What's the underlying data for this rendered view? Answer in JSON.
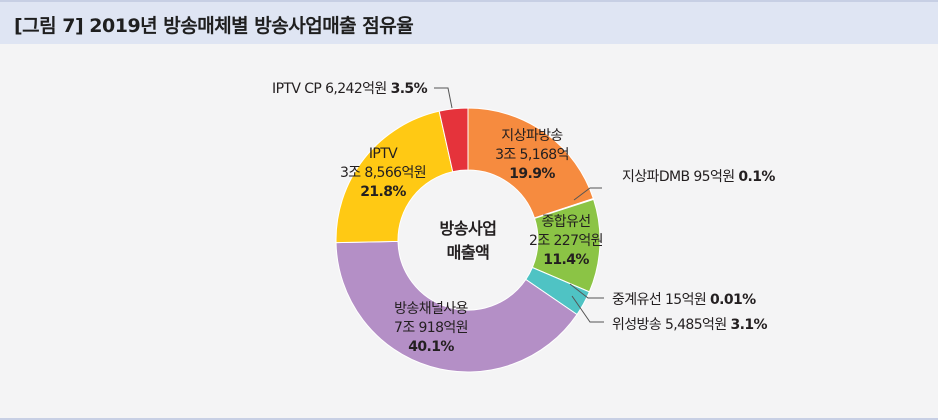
{
  "figure": {
    "title": "[그림 7]  2019년 방송매체별 방송사업매출 점유율"
  },
  "chart_data": {
    "type": "pie",
    "donut": true,
    "center_label": [
      "방송사업",
      "매출액"
    ],
    "start_angle_deg": 0,
    "direction": "clockwise",
    "slices": [
      {
        "name": "지상파방송",
        "amount": "3조 5,168억",
        "percent_label": "19.9%",
        "value": 19.9,
        "color": "#f68b3f"
      },
      {
        "name": "지상파DMB",
        "amount": "95억원",
        "percent_label": "0.1%",
        "value": 0.1,
        "color": "#f9c08a"
      },
      {
        "name": "종합유선",
        "amount": "2조 227억원",
        "percent_label": "11.4%",
        "value": 11.4,
        "color": "#8bc445"
      },
      {
        "name": "중계유선",
        "amount": "15억원",
        "percent_label": "0.01%",
        "value": 0.01,
        "color": "#58c2c3"
      },
      {
        "name": "위성방송",
        "amount": "5,485억원",
        "percent_label": "3.1%",
        "value": 3.1,
        "color": "#4fc3c4"
      },
      {
        "name": "방송채널사용",
        "amount": "7조 918억원",
        "percent_label": "40.1%",
        "value": 40.1,
        "color": "#b48fc6"
      },
      {
        "name": "IPTV",
        "amount": "3조 8,566억원",
        "percent_label": "21.8%",
        "value": 21.8,
        "color": "#ffc914"
      },
      {
        "name": "IPTV CP",
        "amount": "6,242억원",
        "percent_label": "3.5%",
        "value": 3.5,
        "color": "#e5333b"
      }
    ]
  }
}
